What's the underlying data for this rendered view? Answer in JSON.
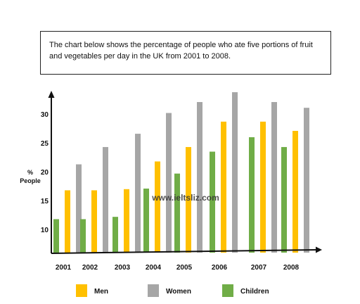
{
  "caption": "The chart below shows the percentage of people who ate five portions of fruit and vegetables per day in the UK from 2001 to 2008.",
  "watermark": "www.ieltsliz.com",
  "chart_data": {
    "type": "bar",
    "ylabel": "% People",
    "ylabel_lines": [
      "%",
      "People"
    ],
    "categories": [
      "2001",
      "2002",
      "2003",
      "2004",
      "2005",
      "2006",
      "2007",
      "2008"
    ],
    "yticks": [
      10,
      15,
      20,
      25,
      30
    ],
    "ylim": [
      6,
      33.5
    ],
    "grid": false,
    "legend_position": "bottom",
    "series": [
      {
        "name": "Men",
        "color": "#ffc000",
        "values": [
          16.8,
          16.8,
          17.0,
          21.8,
          24.3,
          28.7,
          28.7,
          27.1
        ]
      },
      {
        "name": "Women",
        "color": "#a6a6a6",
        "values": [
          21.3,
          24.3,
          26.6,
          30.2,
          32.1,
          33.8,
          32.1,
          31.1
        ]
      },
      {
        "name": "Children",
        "color": "#70ad47",
        "values": [
          11.8,
          11.8,
          12.2,
          17.1,
          19.7,
          23.5,
          26.0,
          24.3
        ]
      }
    ]
  }
}
